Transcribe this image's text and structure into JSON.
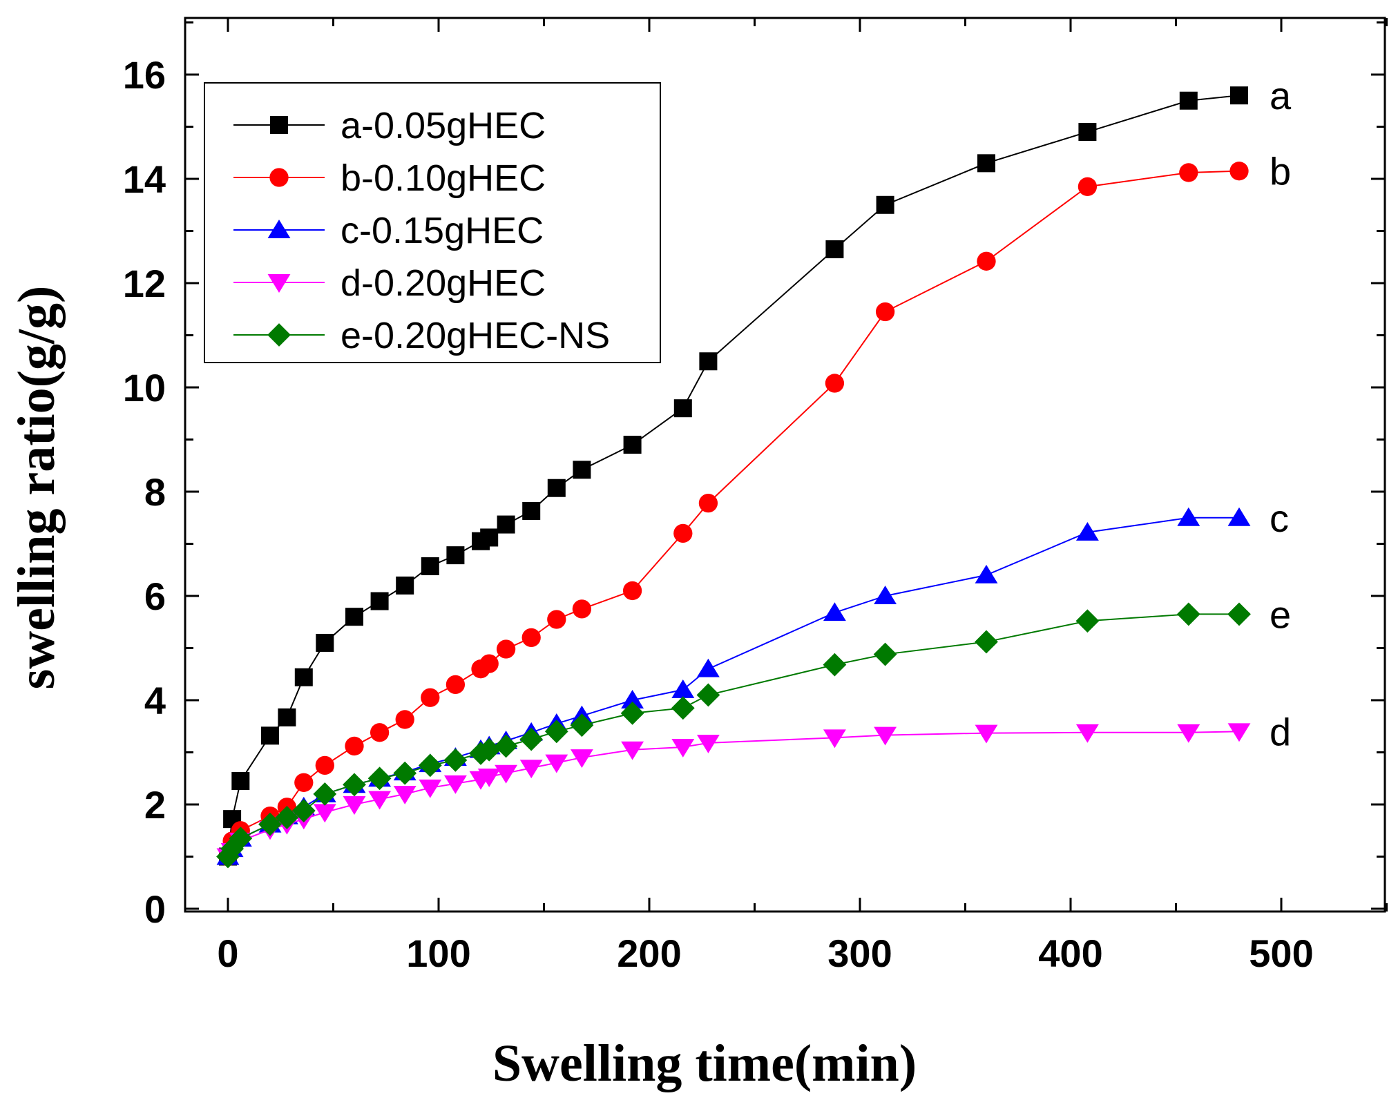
{
  "chart_data": {
    "type": "line",
    "title": "",
    "xlabel": "Swelling time(min)",
    "ylabel": "swelling ratio(g/g)",
    "xlim": [
      -20,
      550
    ],
    "ylim": [
      -0.15,
      17
    ],
    "xticks": [
      0,
      100,
      200,
      300,
      400,
      500
    ],
    "yticks": [
      0,
      2,
      4,
      6,
      8,
      10,
      12,
      14,
      16
    ],
    "xtick_labels": [
      "0",
      "100",
      "200",
      "300",
      "400",
      "500"
    ],
    "ytick_labels": [
      "0",
      "2",
      "4",
      "6",
      "8",
      "10",
      "12",
      "14",
      "16"
    ],
    "grid": false,
    "legend_position": "top-left",
    "series": [
      {
        "name": "a-0.05gHEC",
        "end_label": "a",
        "color": "#000000",
        "marker": "square",
        "x": [
          0,
          2,
          6,
          20,
          28,
          36,
          46,
          60,
          72,
          84,
          96,
          108,
          120,
          124,
          132,
          144,
          156,
          168,
          192,
          216,
          228,
          288,
          312,
          360,
          408,
          456,
          480
        ],
        "y": [
          1.0,
          1.72,
          2.45,
          3.32,
          3.67,
          4.44,
          5.1,
          5.6,
          5.9,
          6.2,
          6.57,
          6.78,
          7.05,
          7.12,
          7.37,
          7.63,
          8.07,
          8.42,
          8.9,
          9.6,
          10.5,
          12.65,
          13.5,
          14.3,
          14.9,
          15.5,
          15.6
        ]
      },
      {
        "name": "b-0.10gHEC",
        "end_label": "b",
        "color": "#ff0000",
        "marker": "circle",
        "x": [
          0,
          2,
          6,
          20,
          28,
          36,
          46,
          60,
          72,
          84,
          96,
          108,
          120,
          124,
          132,
          144,
          156,
          168,
          192,
          216,
          228,
          288,
          312,
          360,
          408,
          456,
          480
        ],
        "y": [
          1.0,
          1.3,
          1.5,
          1.78,
          1.95,
          2.42,
          2.75,
          3.12,
          3.38,
          3.63,
          4.05,
          4.3,
          4.6,
          4.7,
          4.98,
          5.2,
          5.55,
          5.75,
          6.1,
          7.2,
          7.78,
          10.08,
          11.45,
          12.42,
          13.85,
          14.12,
          14.15
        ]
      },
      {
        "name": "c-0.15gHEC",
        "end_label": "c",
        "color": "#0000ff",
        "marker": "triangle-up",
        "x": [
          0,
          2,
          6,
          20,
          28,
          36,
          46,
          60,
          72,
          84,
          96,
          108,
          120,
          124,
          132,
          144,
          156,
          168,
          192,
          216,
          228,
          288,
          312,
          360,
          408,
          456,
          480
        ],
        "y": [
          1.0,
          1.15,
          1.35,
          1.62,
          1.78,
          1.95,
          2.2,
          2.38,
          2.5,
          2.62,
          2.78,
          2.9,
          3.05,
          3.12,
          3.22,
          3.38,
          3.55,
          3.7,
          4.0,
          4.2,
          4.6,
          5.68,
          6.0,
          6.4,
          7.22,
          7.5,
          7.5
        ]
      },
      {
        "name": "d-0.20gHEC",
        "end_label": "d",
        "color": "#ff00ff",
        "marker": "triangle-down",
        "x": [
          0,
          2,
          6,
          20,
          28,
          36,
          46,
          60,
          72,
          84,
          96,
          108,
          120,
          124,
          132,
          144,
          156,
          168,
          192,
          216,
          228,
          288,
          312,
          360,
          408,
          456,
          480
        ],
        "y": [
          1.0,
          1.1,
          1.3,
          1.52,
          1.62,
          1.72,
          1.85,
          2.0,
          2.1,
          2.2,
          2.32,
          2.4,
          2.48,
          2.53,
          2.6,
          2.7,
          2.8,
          2.9,
          3.05,
          3.1,
          3.18,
          3.28,
          3.33,
          3.37,
          3.38,
          3.38,
          3.4
        ]
      },
      {
        "name": "e-0.20gHEC-NS",
        "end_label": "e",
        "color": "#007a00",
        "marker": "diamond",
        "x": [
          0,
          2,
          6,
          20,
          28,
          36,
          46,
          60,
          72,
          84,
          96,
          108,
          120,
          124,
          132,
          144,
          156,
          168,
          192,
          216,
          228,
          288,
          312,
          360,
          408,
          456,
          480
        ],
        "y": [
          1.0,
          1.15,
          1.35,
          1.62,
          1.75,
          1.88,
          2.2,
          2.38,
          2.5,
          2.6,
          2.75,
          2.85,
          2.98,
          3.05,
          3.12,
          3.25,
          3.4,
          3.52,
          3.75,
          3.85,
          4.1,
          4.68,
          4.88,
          5.12,
          5.52,
          5.65,
          5.65
        ]
      }
    ]
  }
}
